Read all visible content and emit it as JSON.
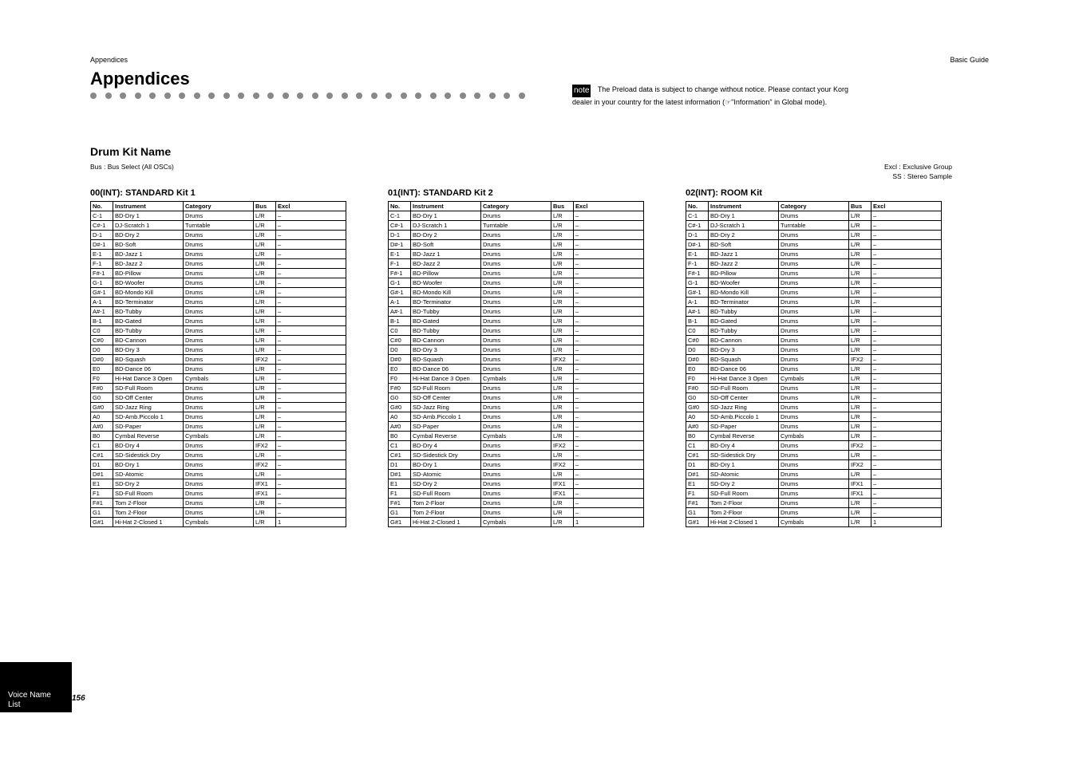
{
  "header": {
    "section": "Appendices",
    "book": "Basic Guide"
  },
  "appendix": {
    "title": "Appendices",
    "dot_count": 30,
    "dot_color": "#888888"
  },
  "note": {
    "badge": "note",
    "lines": [
      "The Preload data is subject to change without notice. Please contact your Korg",
      "dealer in your country for the latest information (☞\"Information\" in Global mode)."
    ]
  },
  "section": {
    "title": "Drum Kit Name",
    "col_widths": {
      "no": 28,
      "instrument": 88,
      "category": 88,
      "bus": 28,
      "excl": 88
    }
  },
  "desc": {
    "left_lines": [
      "Bus : Bus Select (All OSCs)"
    ],
    "right_lines": [
      "Excl : Exclusive Group",
      "SS : Stereo Sample"
    ]
  },
  "kits": [
    {
      "name": "00(INT): STANDARD Kit 1",
      "rows": 33
    },
    {
      "name": "01(INT): STANDARD Kit 2",
      "rows": 33
    },
    {
      "name": "02(INT): ROOM Kit",
      "rows": 33
    }
  ],
  "rowsets": {
    "00(INT): STANDARD Kit 1": [
      [
        "C-1",
        "BD-Dry 1",
        "Drums",
        "L/R",
        "–"
      ],
      [
        "C#-1",
        "DJ-Scratch 1",
        "Turntable",
        "L/R",
        "–"
      ],
      [
        "D-1",
        "BD-Dry 2",
        "Drums",
        "L/R",
        "–"
      ],
      [
        "D#-1",
        "BD-Soft",
        "Drums",
        "L/R",
        "–"
      ],
      [
        "E-1",
        "BD-Jazz 1",
        "Drums",
        "L/R",
        "–"
      ],
      [
        "F-1",
        "BD-Jazz 2",
        "Drums",
        "L/R",
        "–"
      ],
      [
        "F#-1",
        "BD-Pillow",
        "Drums",
        "L/R",
        "–"
      ],
      [
        "G-1",
        "BD-Woofer",
        "Drums",
        "L/R",
        "–"
      ],
      [
        "G#-1",
        "BD-Mondo Kill",
        "Drums",
        "L/R",
        "–"
      ],
      [
        "A-1",
        "BD-Terminator",
        "Drums",
        "L/R",
        "–"
      ],
      [
        "A#-1",
        "BD-Tubby",
        "Drums",
        "L/R",
        "–"
      ],
      [
        "B-1",
        "BD-Gated",
        "Drums",
        "L/R",
        "–"
      ],
      [
        "C0",
        "BD-Tubby",
        "Drums",
        "L/R",
        "–"
      ],
      [
        "C#0",
        "BD-Cannon",
        "Drums",
        "L/R",
        "–"
      ],
      [
        "D0",
        "BD-Dry 3",
        "Drums",
        "L/R",
        "–"
      ],
      [
        "D#0",
        "BD-Squash",
        "Drums",
        "IFX2",
        "–"
      ],
      [
        "E0",
        "BD-Dance 06",
        "Drums",
        "L/R",
        "–"
      ],
      [
        "F0",
        "Hi-Hat Dance 3 Open",
        "Cymbals",
        "L/R",
        "–"
      ],
      [
        "F#0",
        "SD-Full Room",
        "Drums",
        "L/R",
        "–"
      ],
      [
        "G0",
        "SD-Off Center",
        "Drums",
        "L/R",
        "–"
      ],
      [
        "G#0",
        "SD-Jazz Ring",
        "Drums",
        "L/R",
        "–"
      ],
      [
        "A0",
        "SD-Amb.Piccolo 1",
        "Drums",
        "L/R",
        "–"
      ],
      [
        "A#0",
        "SD-Paper",
        "Drums",
        "L/R",
        "–"
      ],
      [
        "B0",
        "Cymbal Reverse",
        "Cymbals",
        "L/R",
        "–"
      ],
      [
        "C1",
        "BD-Dry 4",
        "Drums",
        "IFX2",
        "–"
      ],
      [
        "C#1",
        "SD-Sidestick Dry",
        "Drums",
        "L/R",
        "–"
      ],
      [
        "D1",
        "BD-Dry 1",
        "Drums",
        "IFX2",
        "–"
      ],
      [
        "D#1",
        "SD-Atomic",
        "Drums",
        "L/R",
        "–"
      ],
      [
        "E1",
        "SD-Dry 2",
        "Drums",
        "IFX1",
        "–"
      ],
      [
        "F1",
        "SD-Full Room",
        "Drums",
        "IFX1",
        "–"
      ],
      [
        "F#1",
        "Tom 2-Floor",
        "Drums",
        "L/R",
        "–"
      ],
      [
        "G1",
        "Tom 2-Floor",
        "Drums",
        "L/R",
        "–"
      ],
      [
        "G#1",
        "Hi-Hat 2-Closed 1",
        "Cymbals",
        "L/R",
        "1"
      ]
    ],
    "01(INT): STANDARD Kit 2": [
      [
        "C-1",
        "BD-Dry 1",
        "Drums",
        "L/R",
        "–"
      ],
      [
        "C#-1",
        "DJ-Scratch 1",
        "Turntable",
        "L/R",
        "–"
      ],
      [
        "D-1",
        "BD-Dry 2",
        "Drums",
        "L/R",
        "–"
      ],
      [
        "D#-1",
        "BD-Soft",
        "Drums",
        "L/R",
        "–"
      ],
      [
        "E-1",
        "BD-Jazz 1",
        "Drums",
        "L/R",
        "–"
      ],
      [
        "F-1",
        "BD-Jazz 2",
        "Drums",
        "L/R",
        "–"
      ],
      [
        "F#-1",
        "BD-Pillow",
        "Drums",
        "L/R",
        "–"
      ],
      [
        "G-1",
        "BD-Woofer",
        "Drums",
        "L/R",
        "–"
      ],
      [
        "G#-1",
        "BD-Mondo Kill",
        "Drums",
        "L/R",
        "–"
      ],
      [
        "A-1",
        "BD-Terminator",
        "Drums",
        "L/R",
        "–"
      ],
      [
        "A#-1",
        "BD-Tubby",
        "Drums",
        "L/R",
        "–"
      ],
      [
        "B-1",
        "BD-Gated",
        "Drums",
        "L/R",
        "–"
      ],
      [
        "C0",
        "BD-Tubby",
        "Drums",
        "L/R",
        "–"
      ],
      [
        "C#0",
        "BD-Cannon",
        "Drums",
        "L/R",
        "–"
      ],
      [
        "D0",
        "BD-Dry 3",
        "Drums",
        "L/R",
        "–"
      ],
      [
        "D#0",
        "BD-Squash",
        "Drums",
        "IFX2",
        "–"
      ],
      [
        "E0",
        "BD-Dance 06",
        "Drums",
        "L/R",
        "–"
      ],
      [
        "F0",
        "Hi-Hat Dance 3 Open",
        "Cymbals",
        "L/R",
        "–"
      ],
      [
        "F#0",
        "SD-Full Room",
        "Drums",
        "L/R",
        "–"
      ],
      [
        "G0",
        "SD-Off Center",
        "Drums",
        "L/R",
        "–"
      ],
      [
        "G#0",
        "SD-Jazz Ring",
        "Drums",
        "L/R",
        "–"
      ],
      [
        "A0",
        "SD-Amb.Piccolo 1",
        "Drums",
        "L/R",
        "–"
      ],
      [
        "A#0",
        "SD-Paper",
        "Drums",
        "L/R",
        "–"
      ],
      [
        "B0",
        "Cymbal Reverse",
        "Cymbals",
        "L/R",
        "–"
      ],
      [
        "C1",
        "BD-Dry 4",
        "Drums",
        "IFX2",
        "–"
      ],
      [
        "C#1",
        "SD-Sidestick Dry",
        "Drums",
        "L/R",
        "–"
      ],
      [
        "D1",
        "BD-Dry 1",
        "Drums",
        "IFX2",
        "–"
      ],
      [
        "D#1",
        "SD-Atomic",
        "Drums",
        "L/R",
        "–"
      ],
      [
        "E1",
        "SD-Dry 2",
        "Drums",
        "IFX1",
        "–"
      ],
      [
        "F1",
        "SD-Full Room",
        "Drums",
        "IFX1",
        "–"
      ],
      [
        "F#1",
        "Tom 2-Floor",
        "Drums",
        "L/R",
        "–"
      ],
      [
        "G1",
        "Tom 2-Floor",
        "Drums",
        "L/R",
        "–"
      ],
      [
        "G#1",
        "Hi-Hat 2-Closed 1",
        "Cymbals",
        "L/R",
        "1"
      ]
    ],
    "02(INT): ROOM Kit": [
      [
        "C-1",
        "BD-Dry 1",
        "Drums",
        "L/R",
        "–"
      ],
      [
        "C#-1",
        "DJ-Scratch 1",
        "Turntable",
        "L/R",
        "–"
      ],
      [
        "D-1",
        "BD-Dry 2",
        "Drums",
        "L/R",
        "–"
      ],
      [
        "D#-1",
        "BD-Soft",
        "Drums",
        "L/R",
        "–"
      ],
      [
        "E-1",
        "BD-Jazz 1",
        "Drums",
        "L/R",
        "–"
      ],
      [
        "F-1",
        "BD-Jazz 2",
        "Drums",
        "L/R",
        "–"
      ],
      [
        "F#-1",
        "BD-Pillow",
        "Drums",
        "L/R",
        "–"
      ],
      [
        "G-1",
        "BD-Woofer",
        "Drums",
        "L/R",
        "–"
      ],
      [
        "G#-1",
        "BD-Mondo Kill",
        "Drums",
        "L/R",
        "–"
      ],
      [
        "A-1",
        "BD-Terminator",
        "Drums",
        "L/R",
        "–"
      ],
      [
        "A#-1",
        "BD-Tubby",
        "Drums",
        "L/R",
        "–"
      ],
      [
        "B-1",
        "BD-Gated",
        "Drums",
        "L/R",
        "–"
      ],
      [
        "C0",
        "BD-Tubby",
        "Drums",
        "L/R",
        "–"
      ],
      [
        "C#0",
        "BD-Cannon",
        "Drums",
        "L/R",
        "–"
      ],
      [
        "D0",
        "BD-Dry 3",
        "Drums",
        "L/R",
        "–"
      ],
      [
        "D#0",
        "BD-Squash",
        "Drums",
        "IFX2",
        "–"
      ],
      [
        "E0",
        "BD-Dance 06",
        "Drums",
        "L/R",
        "–"
      ],
      [
        "F0",
        "Hi-Hat Dance 3 Open",
        "Cymbals",
        "L/R",
        "–"
      ],
      [
        "F#0",
        "SD-Full Room",
        "Drums",
        "L/R",
        "–"
      ],
      [
        "G0",
        "SD-Off Center",
        "Drums",
        "L/R",
        "–"
      ],
      [
        "G#0",
        "SD-Jazz Ring",
        "Drums",
        "L/R",
        "–"
      ],
      [
        "A0",
        "SD-Amb.Piccolo 1",
        "Drums",
        "L/R",
        "–"
      ],
      [
        "A#0",
        "SD-Paper",
        "Drums",
        "L/R",
        "–"
      ],
      [
        "B0",
        "Cymbal Reverse",
        "Cymbals",
        "L/R",
        "–"
      ],
      [
        "C1",
        "BD-Dry 4",
        "Drums",
        "IFX2",
        "–"
      ],
      [
        "C#1",
        "SD-Sidestick Dry",
        "Drums",
        "L/R",
        "–"
      ],
      [
        "D1",
        "BD-Dry 1",
        "Drums",
        "IFX2",
        "–"
      ],
      [
        "D#1",
        "SD-Atomic",
        "Drums",
        "L/R",
        "–"
      ],
      [
        "E1",
        "SD-Dry 2",
        "Drums",
        "IFX1",
        "–"
      ],
      [
        "F1",
        "SD-Full Room",
        "Drums",
        "IFX1",
        "–"
      ],
      [
        "F#1",
        "Tom 2-Floor",
        "Drums",
        "L/R",
        "–"
      ],
      [
        "G1",
        "Tom 2-Floor",
        "Drums",
        "L/R",
        "–"
      ],
      [
        "G#1",
        "Hi-Hat 2-Closed 1",
        "Cymbals",
        "L/R",
        "1"
      ]
    ]
  },
  "table_headers": [
    "No.",
    "Instrument",
    "Category",
    "Bus",
    "Excl"
  ],
  "footer": {
    "bar_lines": [
      "Voice Name",
      "List"
    ],
    "page_number": "156"
  }
}
